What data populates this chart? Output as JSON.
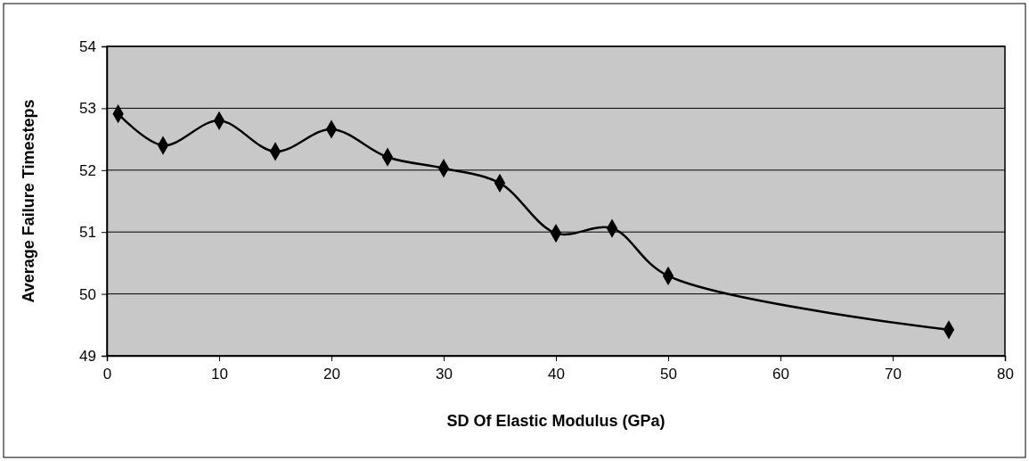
{
  "chart_data": {
    "type": "line",
    "xlabel": "SD Of Elastic Modulus (GPa)",
    "ylabel": "Average Failure Timesteps",
    "x": [
      1,
      5,
      10,
      15,
      20,
      25,
      30,
      35,
      40,
      45,
      50,
      75
    ],
    "series": [
      {
        "color": "#000000",
        "values": [
          52.91,
          52.4,
          52.8,
          52.3,
          52.66,
          52.21,
          52.03,
          51.79,
          50.98,
          51.06,
          50.29,
          49.42
        ]
      }
    ],
    "xlim": [
      0,
      80
    ],
    "xticks": [
      0,
      10,
      20,
      30,
      40,
      50,
      60,
      70,
      80
    ],
    "ylim": [
      49,
      54
    ],
    "yticks": [
      49,
      50,
      51,
      52,
      53,
      54
    ],
    "grid": "y",
    "marker": "diamond",
    "line_style": "solid"
  }
}
